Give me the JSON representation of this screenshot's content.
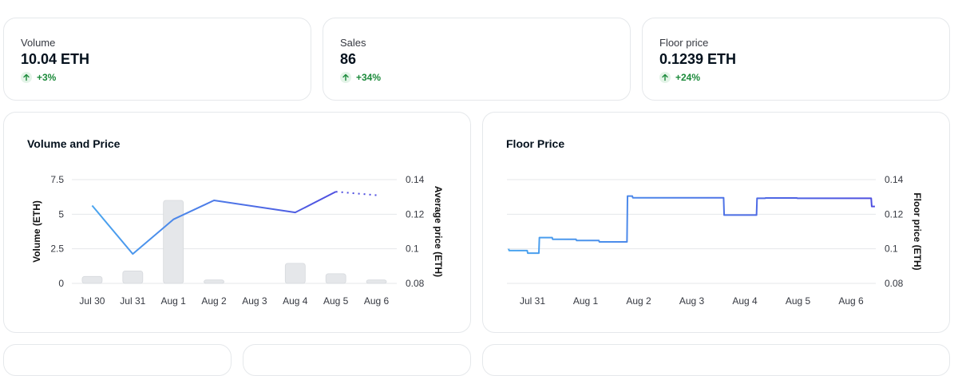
{
  "stats": [
    {
      "label": "Volume",
      "value": "10.04 ETH",
      "change": "+3%"
    },
    {
      "label": "Sales",
      "value": "86",
      "change": "+34%"
    },
    {
      "label": "Floor price",
      "value": "0.1239 ETH",
      "change": "+24%"
    }
  ],
  "colors": {
    "up": "#1b8a3a",
    "bar": "#e5e7ea",
    "line_light": "#4aa5ef",
    "line_dark": "#4f4fe0"
  },
  "chart_data": [
    {
      "type": "bar",
      "title": "Volume and Price",
      "categories": [
        "Jul 30",
        "Jul 31",
        "Aug 1",
        "Aug 2",
        "Aug 3",
        "Aug 4",
        "Aug 5",
        "Aug 6"
      ],
      "ylabel": "Volume (ETH)",
      "ylim": [
        0,
        7.5
      ],
      "yticks": [
        "0",
        "2.5",
        "5",
        "7.5"
      ],
      "y2label": "Average price (ETH)",
      "y2lim": [
        0.08,
        0.14
      ],
      "y2ticks": [
        "0.08",
        "0.1",
        "0.12",
        "0.14"
      ],
      "grid": true,
      "series": [
        {
          "kind": "bar",
          "axis": "left",
          "values": [
            0.5,
            0.9,
            6.0,
            0.25,
            0,
            1.45,
            0.7,
            0.25
          ]
        },
        {
          "kind": "line",
          "axis": "right",
          "values": [
            0.125,
            0.097,
            0.117,
            0.128,
            null,
            0.121,
            0.133,
            0.131
          ],
          "dashed_last_segment": true
        }
      ]
    },
    {
      "type": "line",
      "title": "Floor Price",
      "categories": [
        "Jul 31",
        "Aug 1",
        "Aug 2",
        "Aug 3",
        "Aug 4",
        "Aug 5",
        "Aug 6"
      ],
      "ylabel": "Floor price (ETH)",
      "ylim": [
        0.08,
        0.14
      ],
      "yticks": [
        "0.08",
        "0.1",
        "0.12",
        "0.14"
      ],
      "grid": true,
      "series": [
        {
          "points": [
            [
              -0.45,
              0.1
            ],
            [
              -0.44,
              0.099
            ],
            [
              -0.1,
              0.099
            ],
            [
              -0.09,
              0.0975
            ],
            [
              0.12,
              0.0975
            ],
            [
              0.13,
              0.1065
            ],
            [
              0.37,
              0.1065
            ],
            [
              0.38,
              0.1055
            ],
            [
              0.82,
              0.1055
            ],
            [
              0.83,
              0.1048
            ],
            [
              1.25,
              0.1048
            ],
            [
              1.26,
              0.104
            ],
            [
              1.78,
              0.104
            ],
            [
              1.79,
              0.1305
            ],
            [
              1.88,
              0.1305
            ],
            [
              1.89,
              0.1295
            ],
            [
              3.6,
              0.1295
            ],
            [
              3.61,
              0.1195
            ],
            [
              4.22,
              0.1195
            ],
            [
              4.23,
              0.1292
            ],
            [
              4.38,
              0.1292
            ],
            [
              4.39,
              0.1294
            ],
            [
              4.98,
              0.1294
            ],
            [
              4.99,
              0.1292
            ],
            [
              6.38,
              0.1292
            ],
            [
              6.39,
              0.1245
            ],
            [
              6.45,
              0.1245
            ]
          ]
        }
      ]
    }
  ]
}
